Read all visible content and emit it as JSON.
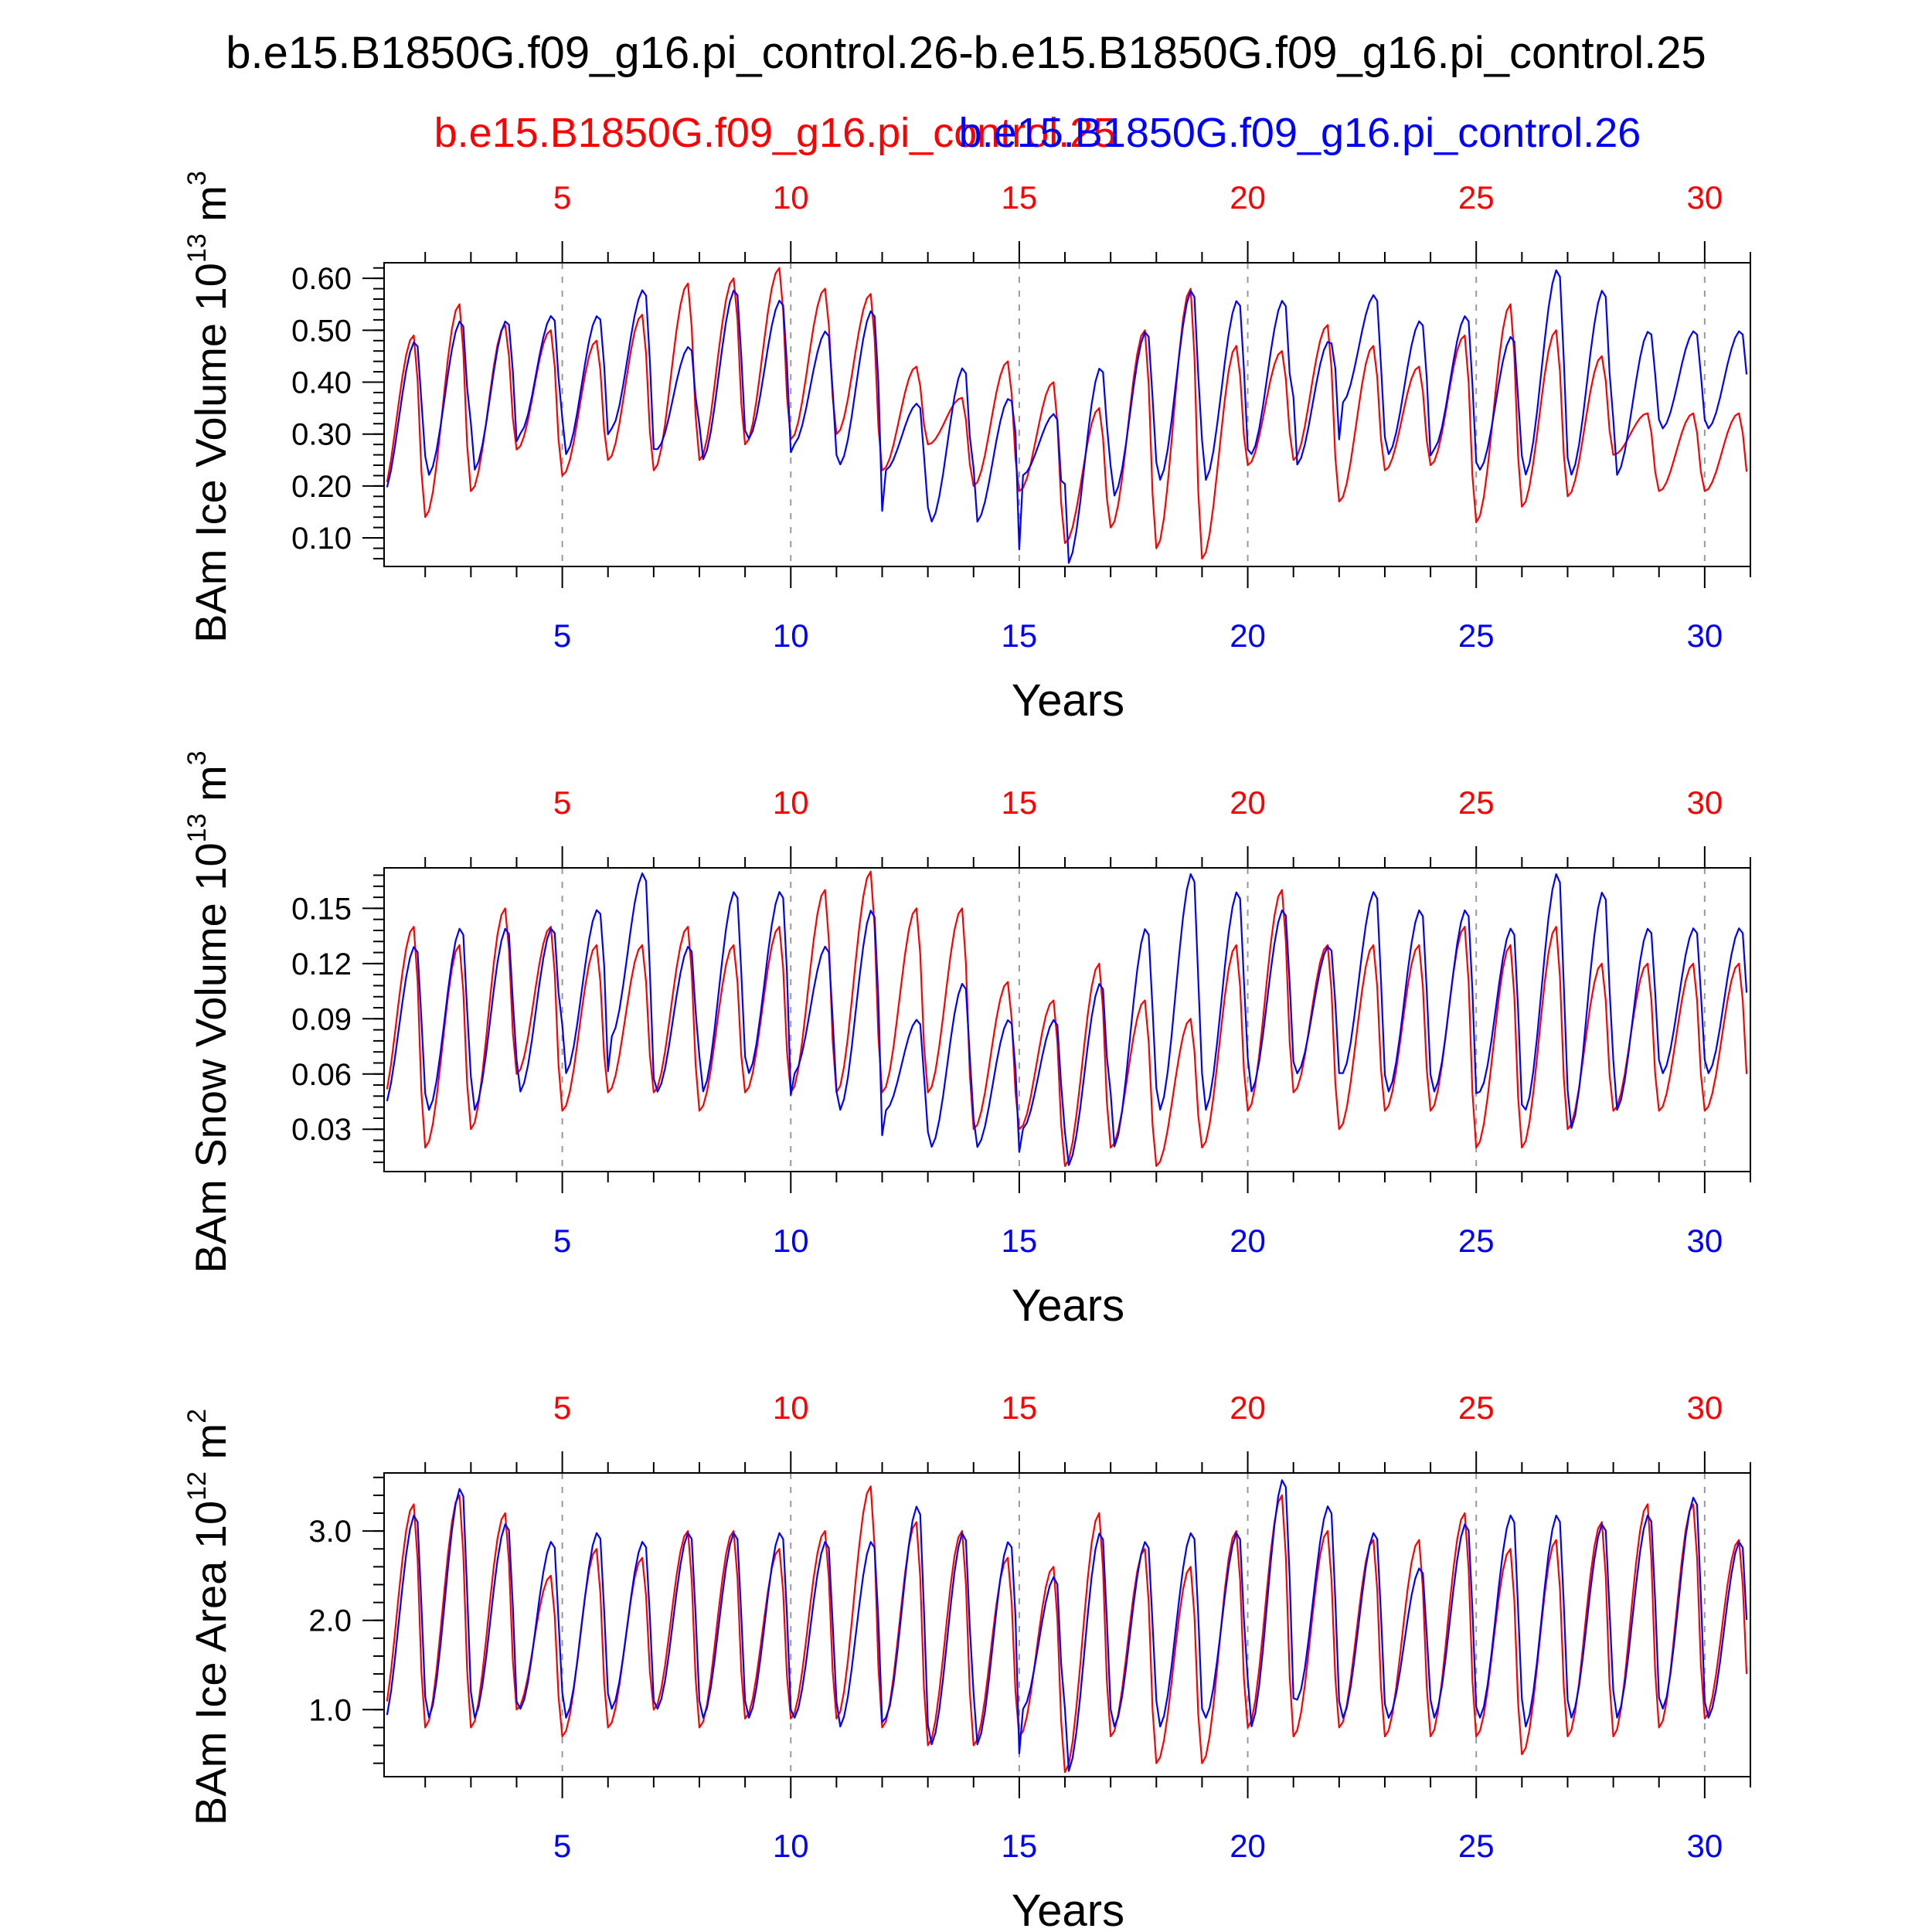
{
  "title": "b.e15.B1850G.f09_g16.pi_control.26-b.e15.B1850G.f09_g16.pi_control.25",
  "legend": {
    "red_label": "b.e15.B1850G.f09_g16.pi_control.25",
    "blue_label": "b.e15.B1850G.f09_g16.pi_control.26"
  },
  "colors": {
    "red": "#ff0000",
    "blue": "#0000ff",
    "axis": "#000000",
    "grid": "#999999"
  },
  "chart_data": [
    {
      "type": "line",
      "ylabel_main": "BAm Ice Volume 10",
      "ylabel_exp": "13",
      "ylabel_unit": " m",
      "ylabel_unit_exp": "3",
      "xlabel": "Years",
      "xlim": [
        1.1,
        31.0
      ],
      "ylim": [
        0.045,
        0.63
      ],
      "yticks": [
        0.1,
        0.2,
        0.3,
        0.4,
        0.5,
        0.6
      ],
      "ytick_labels": [
        "0.10",
        "0.20",
        "0.30",
        "0.40",
        "0.50",
        "0.60"
      ],
      "xticks": [
        5,
        10,
        15,
        20,
        25,
        30
      ],
      "xtick_labels": [
        "5",
        "10",
        "15",
        "20",
        "25",
        "30"
      ],
      "grid": "vertical dashed at major x ticks",
      "series": [
        {
          "name": "b.e15.B1850G.f09_g16.pi_control.25",
          "color": "#ff0000",
          "phase": 0.0,
          "maxima": [
            0.49,
            0.55,
            0.51,
            0.5,
            0.48,
            0.53,
            0.59,
            0.6,
            0.62,
            0.58,
            0.57,
            0.43,
            0.37,
            0.44,
            0.4,
            0.35,
            0.5,
            0.58,
            0.47,
            0.46,
            0.51,
            0.47,
            0.43,
            0.49,
            0.55,
            0.5,
            0.45,
            0.34
          ],
          "minima": [
            0.17,
            0.14,
            0.19,
            0.27,
            0.22,
            0.25,
            0.23,
            0.25,
            0.28,
            0.29,
            0.3,
            0.23,
            0.28,
            0.2,
            0.19,
            0.09,
            0.12,
            0.08,
            0.06,
            0.24,
            0.25,
            0.17,
            0.23,
            0.24,
            0.13,
            0.16,
            0.18,
            0.26,
            0.19
          ]
        },
        {
          "name": "b.e15.B1850G.f09_g16.pi_control.26",
          "color": "#0000ff",
          "phase": 0.05,
          "maxima": [
            0.48,
            0.52,
            0.52,
            0.53,
            0.53,
            0.58,
            0.47,
            0.58,
            0.56,
            0.5,
            0.54,
            0.36,
            0.43,
            0.37,
            0.34,
            0.43,
            0.5,
            0.58,
            0.56,
            0.56,
            0.48,
            0.57,
            0.52,
            0.53,
            0.49,
            0.62,
            0.58,
            0.5
          ],
          "minima": [
            0.18,
            0.22,
            0.23,
            0.3,
            0.26,
            0.31,
            0.27,
            0.25,
            0.29,
            0.28,
            0.24,
            0.23,
            0.13,
            0.13,
            0.22,
            0.05,
            0.18,
            0.21,
            0.21,
            0.26,
            0.24,
            0.36,
            0.26,
            0.27,
            0.23,
            0.22,
            0.22,
            0.22,
            0.31
          ]
        }
      ]
    },
    {
      "type": "line",
      "ylabel_main": "BAm Snow Volume 10",
      "ylabel_exp": "13",
      "ylabel_unit": " m",
      "ylabel_unit_exp": "3",
      "xlabel": "Years",
      "xlim": [
        1.1,
        31.0
      ],
      "ylim": [
        0.007,
        0.172
      ],
      "yticks": [
        0.03,
        0.06,
        0.09,
        0.12,
        0.15
      ],
      "ytick_labels": [
        "0.03",
        "0.06",
        "0.09",
        "0.12",
        "0.15"
      ],
      "xticks": [
        5,
        10,
        15,
        20,
        25,
        30
      ],
      "xtick_labels": [
        "5",
        "10",
        "15",
        "20",
        "25",
        "30"
      ],
      "grid": "vertical dashed at major x ticks",
      "series": [
        {
          "name": "b.e15.B1850G.f09_g16.pi_control.25",
          "color": "#ff0000",
          "phase": 0.0,
          "maxima": [
            0.14,
            0.13,
            0.15,
            0.14,
            0.13,
            0.13,
            0.14,
            0.13,
            0.14,
            0.16,
            0.17,
            0.15,
            0.15,
            0.11,
            0.1,
            0.12,
            0.1,
            0.09,
            0.13,
            0.16,
            0.13,
            0.13,
            0.13,
            0.14,
            0.13,
            0.14,
            0.12,
            0.12
          ],
          "minima": [
            0.04,
            0.02,
            0.03,
            0.06,
            0.04,
            0.05,
            0.05,
            0.04,
            0.05,
            0.05,
            0.05,
            0.05,
            0.05,
            0.03,
            0.03,
            0.01,
            0.02,
            0.01,
            0.02,
            0.04,
            0.05,
            0.03,
            0.04,
            0.04,
            0.02,
            0.02,
            0.03,
            0.04,
            0.04
          ]
        },
        {
          "name": "b.e15.B1850G.f09_g16.pi_control.26",
          "color": "#0000ff",
          "phase": 0.05,
          "maxima": [
            0.13,
            0.14,
            0.14,
            0.14,
            0.15,
            0.17,
            0.13,
            0.16,
            0.16,
            0.13,
            0.15,
            0.09,
            0.11,
            0.09,
            0.09,
            0.11,
            0.14,
            0.17,
            0.16,
            0.15,
            0.13,
            0.16,
            0.15,
            0.15,
            0.14,
            0.17,
            0.16,
            0.14
          ],
          "minima": [
            0.04,
            0.04,
            0.04,
            0.05,
            0.06,
            0.08,
            0.05,
            0.05,
            0.06,
            0.06,
            0.04,
            0.04,
            0.02,
            0.02,
            0.03,
            0.01,
            0.02,
            0.04,
            0.04,
            0.05,
            0.06,
            0.06,
            0.05,
            0.05,
            0.05,
            0.04,
            0.03,
            0.04,
            0.06
          ]
        }
      ]
    },
    {
      "type": "line",
      "ylabel_main": "BAm Ice Area 10",
      "ylabel_exp": "12",
      "ylabel_unit": " m",
      "ylabel_unit_exp": "2",
      "xlabel": "Years",
      "xlim": [
        1.1,
        31.0
      ],
      "ylim": [
        0.25,
        3.65
      ],
      "yticks": [
        1.0,
        2.0,
        3.0
      ],
      "ytick_labels": [
        "1.0",
        "2.0",
        "3.0"
      ],
      "xticks": [
        5,
        10,
        15,
        20,
        25,
        30
      ],
      "xtick_labels": [
        "5",
        "10",
        "15",
        "20",
        "25",
        "30"
      ],
      "grid": "vertical dashed at major x ticks",
      "series": [
        {
          "name": "b.e15.B1850G.f09_g16.pi_control.25",
          "color": "#ff0000",
          "phase": 0.0,
          "maxima": [
            3.3,
            3.4,
            3.2,
            2.5,
            2.8,
            2.7,
            3.0,
            3.0,
            2.8,
            3.0,
            3.5,
            3.1,
            3.0,
            2.7,
            2.6,
            3.2,
            2.8,
            2.6,
            3.0,
            3.4,
            3.0,
            2.9,
            2.9,
            3.2,
            2.8,
            2.9,
            3.1,
            3.3,
            3.3,
            2.9
          ],
          "minima": [
            0.8,
            0.8,
            0.8,
            1.0,
            0.7,
            0.8,
            1.0,
            0.8,
            0.9,
            0.9,
            0.9,
            0.8,
            0.6,
            0.6,
            0.7,
            0.3,
            0.7,
            0.4,
            0.4,
            0.8,
            0.7,
            0.8,
            0.7,
            0.7,
            0.7,
            0.5,
            0.7,
            0.7,
            0.8,
            0.9
          ]
        },
        {
          "name": "b.e15.B1850G.f09_g16.pi_control.26",
          "color": "#0000ff",
          "phase": 0.05,
          "maxima": [
            3.2,
            3.5,
            3.1,
            2.9,
            3.0,
            2.9,
            3.0,
            3.0,
            3.0,
            2.9,
            2.9,
            3.3,
            3.0,
            2.9,
            2.5,
            3.0,
            2.9,
            3.0,
            3.0,
            3.6,
            3.3,
            3.0,
            2.6,
            3.1,
            3.2,
            3.2,
            3.1,
            3.2,
            3.4,
            2.9
          ],
          "minima": [
            0.8,
            0.9,
            0.9,
            1.0,
            0.9,
            1.0,
            1.0,
            0.9,
            0.9,
            0.9,
            0.8,
            0.9,
            0.6,
            0.6,
            1.0,
            0.3,
            0.8,
            0.8,
            0.9,
            0.8,
            1.1,
            0.9,
            0.9,
            0.9,
            0.9,
            0.8,
            0.9,
            0.9,
            1.0,
            0.9
          ]
        }
      ]
    }
  ]
}
